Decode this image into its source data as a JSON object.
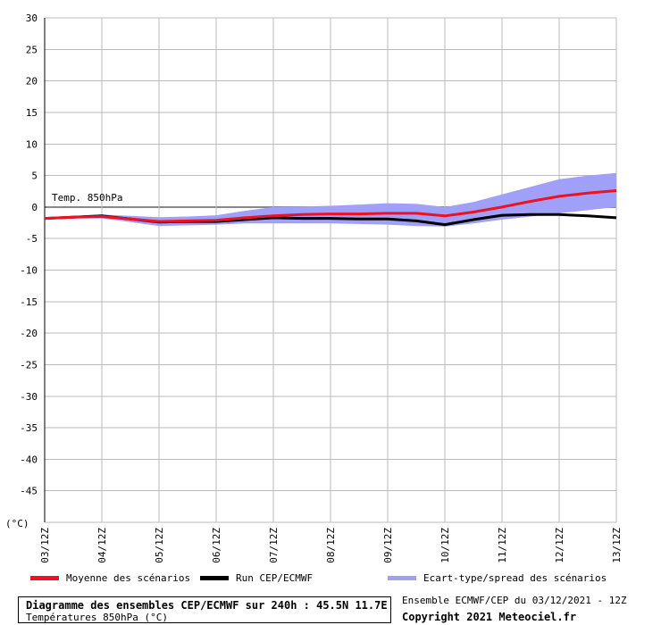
{
  "chart_data": {
    "type": "line",
    "title": "Diagramme des ensembles CEP/ECMWF sur 240h : 45.5N 11.7E",
    "subtitle": "Températures 850hPa (°C)",
    "annotation": "Temp. 850hPa",
    "ylabel": "(°C)",
    "ylim": [
      -50,
      30
    ],
    "yticks": [
      30,
      25,
      20,
      15,
      10,
      5,
      0,
      -5,
      -10,
      -15,
      -20,
      -25,
      -30,
      -35,
      -40,
      -45
    ],
    "x_labels": [
      "03/12Z",
      "04/12Z",
      "05/12Z",
      "06/12Z",
      "07/12Z",
      "08/12Z",
      "09/12Z",
      "10/12Z",
      "11/12Z",
      "12/12Z",
      "13/12Z"
    ],
    "grid": true,
    "legend_position": "bottom",
    "colors": {
      "mean": "#ee1122",
      "run": "#000000",
      "spread": "#a0a0f8",
      "grid": "#bbbbbb"
    },
    "series": [
      {
        "name": "Moyenne des scénarios",
        "key": "mean",
        "x": [
          0,
          0.5,
          1,
          1.5,
          2,
          2.5,
          3,
          3.5,
          4,
          4.5,
          5,
          5.5,
          6,
          6.5,
          7,
          7.5,
          8,
          8.5,
          9,
          9.5,
          10
        ],
        "values": [
          -1.8,
          -1.6,
          -1.5,
          -1.9,
          -2.3,
          -2.2,
          -2.1,
          -1.7,
          -1.4,
          -1.2,
          -1.1,
          -1.1,
          -1.0,
          -1.0,
          -1.4,
          -0.8,
          0.0,
          0.9,
          1.7,
          2.2,
          2.6
        ]
      },
      {
        "name": "Run CEP/ECMWF",
        "key": "run",
        "x": [
          0,
          0.5,
          1,
          1.5,
          2,
          2.5,
          3,
          3.5,
          4,
          4.5,
          5,
          5.5,
          6,
          6.5,
          7,
          7.5,
          8,
          8.5,
          9,
          9.5,
          10
        ],
        "values": [
          -1.8,
          -1.6,
          -1.4,
          -1.9,
          -2.4,
          -2.3,
          -2.3,
          -2.0,
          -1.7,
          -1.8,
          -1.8,
          -1.9,
          -1.9,
          -2.2,
          -2.8,
          -2.0,
          -1.3,
          -1.2,
          -1.2,
          -1.4,
          -1.7
        ]
      },
      {
        "name": "Ecart-type/spread des scénarios",
        "key": "spread",
        "kind": "band",
        "x": [
          0,
          0.5,
          1,
          1.5,
          2,
          2.5,
          3,
          3.5,
          4,
          4.5,
          5,
          5.5,
          6,
          6.5,
          7,
          7.5,
          8,
          8.5,
          9,
          9.5,
          10
        ],
        "upper": [
          -1.7,
          -1.4,
          -1.2,
          -1.4,
          -1.6,
          -1.5,
          -1.3,
          -0.6,
          0.0,
          0.1,
          0.2,
          0.4,
          0.6,
          0.5,
          0.0,
          0.8,
          2.0,
          3.2,
          4.4,
          5.0,
          5.4
        ],
        "lower": [
          -1.9,
          -1.8,
          -1.8,
          -2.4,
          -3.0,
          -2.9,
          -2.8,
          -2.6,
          -2.6,
          -2.6,
          -2.6,
          -2.7,
          -2.8,
          -3.0,
          -3.1,
          -2.6,
          -2.0,
          -1.5,
          -1.0,
          -0.5,
          0.0
        ]
      }
    ]
  },
  "footer": {
    "run_info": "Ensemble ECMWF/CEP du 03/12/2021 - 12Z",
    "copyright": "Copyright 2021 Meteociel.fr"
  }
}
